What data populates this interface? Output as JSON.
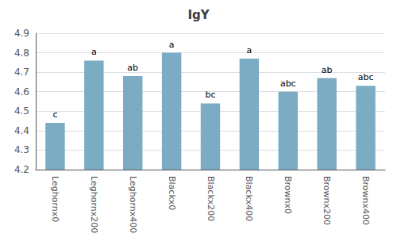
{
  "chart_data": {
    "type": "bar",
    "title": "IgY",
    "categories": [
      "Leghornx0",
      "Leghornx200",
      "Leghornx400",
      "Blackx0",
      "Blackx200",
      "Blackx400",
      "Brownx0",
      "Brownx200",
      "Brownx400"
    ],
    "values": [
      4.44,
      4.76,
      4.68,
      4.8,
      4.54,
      4.77,
      4.6,
      4.67,
      4.63
    ],
    "annotations": [
      "c",
      "a",
      "ab",
      "a",
      "bc",
      "a",
      "abc",
      "ab",
      "abc"
    ],
    "color": "#7BACC4",
    "ylim": [
      4.2,
      4.9
    ],
    "yticks": [
      4.2,
      4.3,
      4.4,
      4.5,
      4.6,
      4.7,
      4.8,
      4.9
    ],
    "grid": true
  }
}
